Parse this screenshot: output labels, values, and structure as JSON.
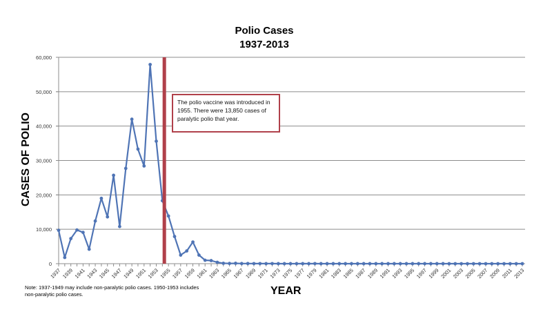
{
  "chart_data": {
    "type": "line",
    "title": "Polio Cases",
    "subtitle": "1937-2013",
    "xlabel": "YEAR",
    "ylabel": "CASES OF POLIO",
    "ylim": [
      0,
      60000
    ],
    "yticks": [
      "0",
      "10,000",
      "20,000",
      "30,000",
      "40,000",
      "50,000",
      "60,000"
    ],
    "xtick_labels": [
      "1937",
      "1939",
      "1941",
      "1943",
      "1945",
      "1947",
      "1949",
      "1951",
      "1953",
      "1955",
      "1957",
      "1959",
      "1961",
      "1963",
      "1965",
      "1967",
      "1969",
      "1971",
      "1973",
      "1975",
      "1977",
      "1979",
      "1981",
      "1983",
      "1985",
      "1987",
      "1989",
      "1991",
      "1993",
      "1995",
      "1997",
      "1999",
      "2001",
      "2003",
      "2005",
      "2007",
      "2009",
      "2011",
      "2013"
    ],
    "grid": true,
    "legend": null,
    "series": [
      {
        "name": "Polio cases",
        "color": "#4f74b5",
        "x": [
          1937,
          1938,
          1939,
          1940,
          1941,
          1942,
          1943,
          1944,
          1945,
          1946,
          1947,
          1948,
          1949,
          1950,
          1951,
          1952,
          1953,
          1954,
          1955,
          1956,
          1957,
          1958,
          1959,
          1960,
          1961,
          1962,
          1963,
          1964,
          1965,
          1966,
          1967,
          1968,
          1969,
          1970,
          1971,
          1972,
          1973,
          1974,
          1975,
          1976,
          1977,
          1978,
          1979,
          1980,
          1981,
          1982,
          1983,
          1984,
          1985,
          1986,
          1987,
          1988,
          1989,
          1990,
          1991,
          1992,
          1993,
          1994,
          1995,
          1996,
          1997,
          1998,
          1999,
          2000,
          2001,
          2002,
          2003,
          2004,
          2005,
          2006,
          2007,
          2008,
          2009,
          2010,
          2011,
          2012,
          2013
        ],
        "values": [
          9700,
          1800,
          7300,
          9800,
          9100,
          4200,
          12400,
          19000,
          13600,
          25700,
          10800,
          27700,
          42000,
          33300,
          28400,
          57900,
          35600,
          18300,
          13850,
          7900,
          2500,
          3700,
          6300,
          2500,
          1000,
          900,
          400,
          120,
          70,
          110,
          40,
          50,
          30,
          30,
          20,
          30,
          10,
          10,
          10,
          10,
          20,
          10,
          30,
          10,
          10,
          10,
          10,
          10,
          10,
          10,
          10,
          10,
          10,
          10,
          10,
          10,
          10,
          10,
          10,
          10,
          10,
          10,
          10,
          10,
          0,
          0,
          0,
          0,
          0,
          0,
          0,
          0,
          0,
          0,
          0,
          0,
          0
        ]
      }
    ],
    "annotations": [
      {
        "type": "vertical-line",
        "x": 1955,
        "color": "#b0404a"
      },
      {
        "type": "callout",
        "text": "The polio vaccine was introduced in 1955. There were 13,850 cases of paralytic polio that year."
      }
    ],
    "note": "Note: 1937-1949 may include non-paralytic polio cases. 1950-1953 includes non-paralytic polio cases."
  }
}
